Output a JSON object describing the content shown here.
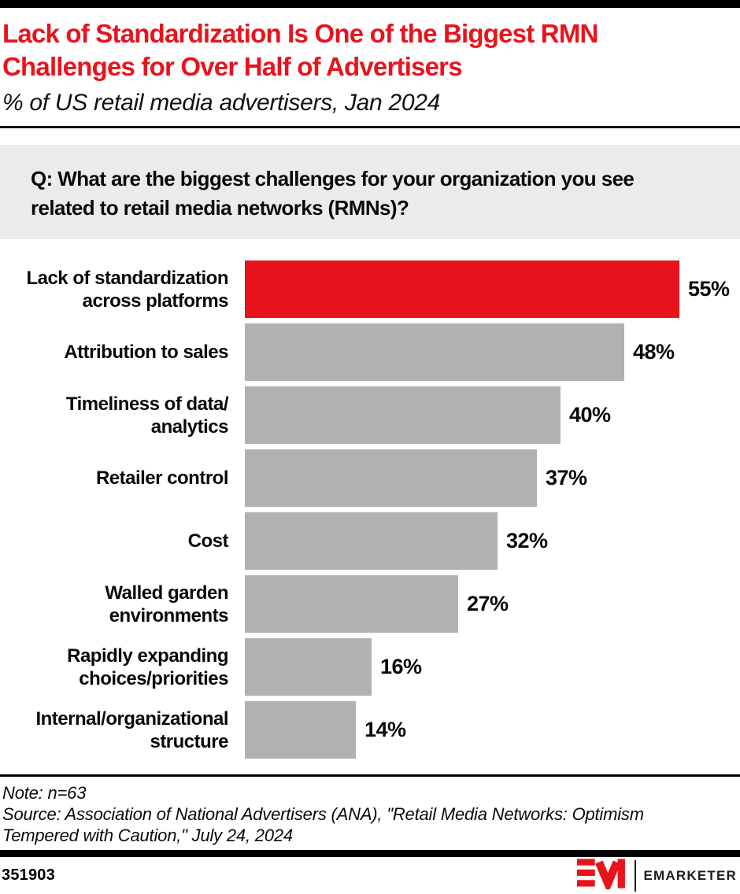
{
  "page": {
    "title_lines": [
      "Lack of Standardization Is One of the Biggest RMN",
      "Challenges for Over Half of Advertisers"
    ],
    "subtitle": "% of US retail media advertisers, Jan 2024",
    "question_lines": [
      "Q: What are the biggest challenges for your organization you see",
      "related to retail media networks (RMNs)?"
    ],
    "note": "Note: n=63",
    "source_lines": [
      "Source: Association of National Advertisers (ANA), \"Retail Media Networks: Optimism",
      "Tempered with Caution,\" July 24, 2024"
    ],
    "chart_id": "351903",
    "brand": "EMARKETER"
  },
  "colors": {
    "accent_red": "#e8131c",
    "bar_gray": "#b1b1b1",
    "question_bg": "#ebebeb",
    "bar_black": "#000000"
  },
  "chart_data": {
    "type": "bar",
    "orientation": "horizontal",
    "unit": "%",
    "title": "Lack of Standardization Is One of the Biggest RMN Challenges for Over Half of Advertisers",
    "subtitle": "% of US retail media advertisers, Jan 2024",
    "categories": [
      "Lack of standardization across platforms",
      "Attribution to sales",
      "Timeliness of data/analytics",
      "Retailer control",
      "Cost",
      "Walled garden environments",
      "Rapidly expanding choices/priorities",
      "Internal/organizational structure"
    ],
    "label_lines": [
      [
        "Lack of standardization",
        "across platforms"
      ],
      [
        "Attribution to sales"
      ],
      [
        "Timeliness of data/",
        "analytics"
      ],
      [
        "Retailer control"
      ],
      [
        "Cost"
      ],
      [
        "Walled garden",
        "environments"
      ],
      [
        "Rapidly expanding",
        "choices/priorities"
      ],
      [
        "Internal/organizational",
        "structure"
      ]
    ],
    "values": [
      55,
      48,
      40,
      37,
      32,
      27,
      16,
      14
    ],
    "value_labels": [
      "55%",
      "48%",
      "40%",
      "37%",
      "32%",
      "27%",
      "16%",
      "14%"
    ],
    "highlight_index": 0,
    "xlim": [
      0,
      55
    ],
    "legend": "none",
    "grid": false
  }
}
